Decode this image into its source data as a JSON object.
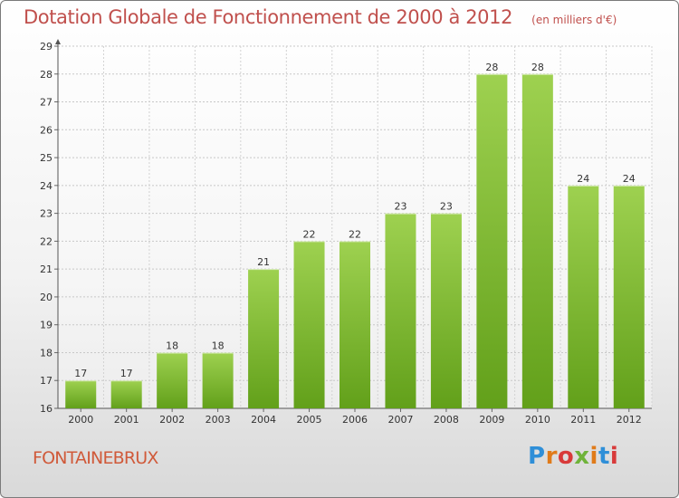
{
  "header": {
    "title": "Dotation Globale de Fonctionnement de 2000 à 2012",
    "subtitle": "(en milliers d'€)"
  },
  "footer": {
    "place": "FONTAINEBRUX",
    "logo_text": "Proxiti"
  },
  "colors": {
    "title": "#c0504d",
    "bar_light": "#9ed150",
    "bar_dark": "#62a01a"
  },
  "chart_data": {
    "type": "bar",
    "title": "Dotation Globale de Fonctionnement de 2000 à 2012",
    "subtitle": "(en milliers d'€)",
    "categories": [
      "2000",
      "2001",
      "2002",
      "2003",
      "2004",
      "2005",
      "2006",
      "2007",
      "2008",
      "2009",
      "2010",
      "2011",
      "2012"
    ],
    "values": [
      17,
      17,
      18,
      18,
      21,
      22,
      22,
      23,
      23,
      28,
      28,
      24,
      24
    ],
    "ylim": [
      16,
      29
    ],
    "yticks": [
      16,
      17,
      18,
      19,
      20,
      21,
      22,
      23,
      24,
      25,
      26,
      27,
      28,
      29
    ],
    "grid": true,
    "data_labels": true,
    "legend": "none"
  }
}
